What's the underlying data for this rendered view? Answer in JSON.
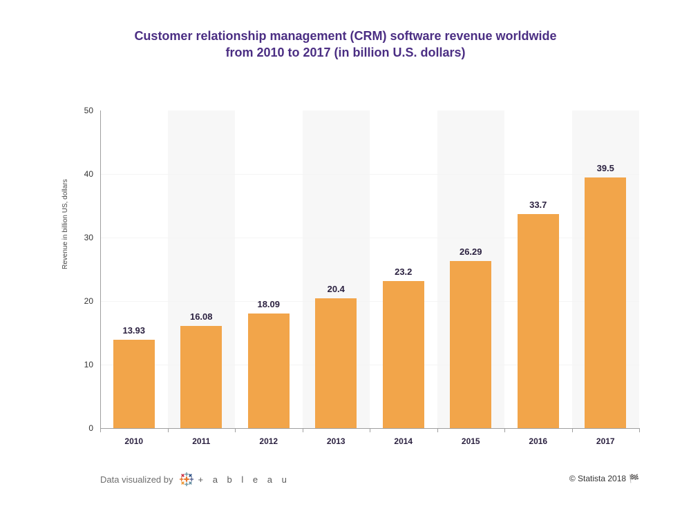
{
  "title_line1": "Customer relationship management (CRM) software revenue worldwide",
  "title_line2": "from 2010 to 2017 (in billion U.S. dollars)",
  "title_color": "#4b2e83",
  "title_fontsize": 18,
  "chart": {
    "type": "bar",
    "categories": [
      "2010",
      "2011",
      "2012",
      "2013",
      "2014",
      "2015",
      "2016",
      "2017"
    ],
    "values": [
      13.93,
      16.08,
      18.09,
      20.4,
      23.2,
      26.29,
      33.7,
      39.5
    ],
    "bar_color": "#f2a54a",
    "bar_label_color": "#2b2140",
    "bar_label_fontsize": 13,
    "bar_width_ratio": 0.62,
    "ylabel": "Revenue in billion US, dollars",
    "ylabel_fontsize": 10,
    "ylabel_color": "#4a4a4a",
    "ylim": [
      0,
      50
    ],
    "ytick_step": 10,
    "ytick_fontsize": 12,
    "ytick_color": "#333333",
    "xtick_fontsize": 12,
    "xtick_color": "#2b2140",
    "gridline_color": "#f4f4f4",
    "axis_line_color": "#9e9e9e",
    "alt_band_color": "#f7f7f7",
    "alt_band_indices": [
      1,
      3,
      5,
      7
    ],
    "background_color": "#ffffff"
  },
  "footer": {
    "left_text": "Data visualized by",
    "left_fontsize": 13,
    "left_color": "#6e6e6e",
    "tableau_text": "+ a b l e a u",
    "tableau_color": "#5a5a5a",
    "right_text": "© Statista 2018",
    "right_fontsize": 12,
    "right_color": "#333333",
    "flag_glyph": "🏁"
  }
}
